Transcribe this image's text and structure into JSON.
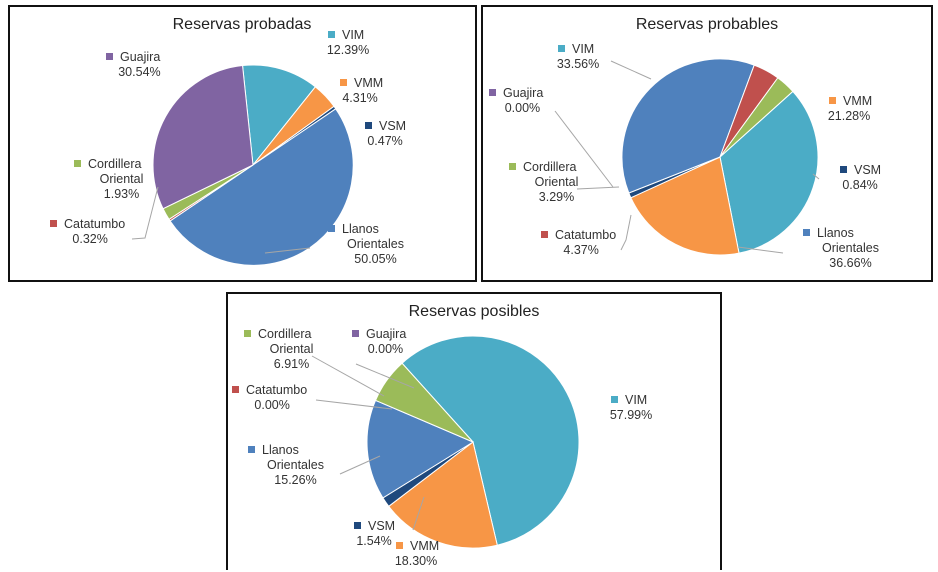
{
  "chart_data": [
    {
      "type": "pie",
      "title": "Reservas probadas",
      "slices": [
        {
          "label": "VIM",
          "value": 12.39,
          "text": "12.39%",
          "color": "#4BACC6"
        },
        {
          "label": "VMM",
          "value": 4.31,
          "text": "4.31%",
          "color": "#F79646"
        },
        {
          "label": "VSM",
          "value": 0.47,
          "text": "0.47%",
          "color": "#1F497D"
        },
        {
          "label": "Llanos Orientales",
          "value": 50.05,
          "text": "50.05%",
          "color": "#4F81BD"
        },
        {
          "label": "Catatumbo",
          "value": 0.32,
          "text": "0.32%",
          "color": "#C0504D"
        },
        {
          "label": "Cordillera Oriental",
          "value": 1.93,
          "text": "1.93%",
          "color": "#9BBB59"
        },
        {
          "label": "Guajira",
          "value": 30.54,
          "text": "30.54%",
          "color": "#8064A2"
        }
      ]
    },
    {
      "type": "pie",
      "title": "Reservas probables",
      "slices": [
        {
          "label": "VIM",
          "value": 33.56,
          "text": "33.56%",
          "color": "#4BACC6"
        },
        {
          "label": "VMM",
          "value": 21.28,
          "text": "21.28%",
          "color": "#F79646"
        },
        {
          "label": "VSM",
          "value": 0.84,
          "text": "0.84%",
          "color": "#1F497D"
        },
        {
          "label": "Llanos Orientales",
          "value": 36.66,
          "text": "36.66%",
          "color": "#4F81BD"
        },
        {
          "label": "Catatumbo",
          "value": 4.37,
          "text": "4.37%",
          "color": "#C0504D"
        },
        {
          "label": "Cordillera Oriental",
          "value": 3.29,
          "text": "3.29%",
          "color": "#9BBB59"
        },
        {
          "label": "Guajira",
          "value": 0.0,
          "text": "0.00%",
          "color": "#8064A2"
        }
      ]
    },
    {
      "type": "pie",
      "title": "Reservas posibles",
      "slices": [
        {
          "label": "VIM",
          "value": 57.99,
          "text": "57.99%",
          "color": "#4BACC6"
        },
        {
          "label": "VMM",
          "value": 18.3,
          "text": "18.30%",
          "color": "#F79646"
        },
        {
          "label": "VSM",
          "value": 1.54,
          "text": "1.54%",
          "color": "#1F497D"
        },
        {
          "label": "Llanos Orientales",
          "value": 15.26,
          "text": "15.26%",
          "color": "#4F81BD"
        },
        {
          "label": "Catatumbo",
          "value": 0.0,
          "text": "0.00%",
          "color": "#C0504D"
        },
        {
          "label": "Cordillera Oriental",
          "value": 6.91,
          "text": "6.91%",
          "color": "#9BBB59"
        },
        {
          "label": "Guajira",
          "value": 0.0,
          "text": "0.00%",
          "color": "#8064A2"
        }
      ]
    }
  ]
}
